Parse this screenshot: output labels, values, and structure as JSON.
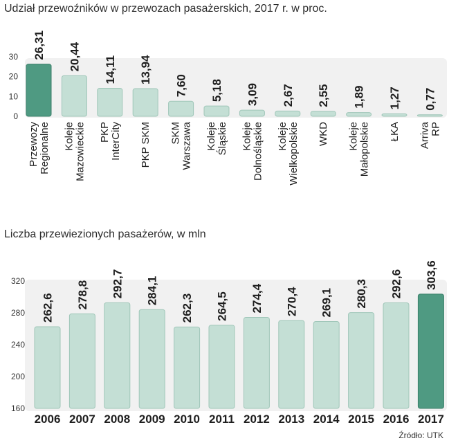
{
  "chart_data": [
    {
      "type": "bar",
      "title": "Udział przewoźników w przewozach pasażerskich, 2017 r. w proc.",
      "categories": [
        [
          "Przewozy",
          "Regionalne"
        ],
        [
          "Koleje",
          "Mazowieckie"
        ],
        [
          "PKP",
          "InterCity"
        ],
        [
          "PKP SKM"
        ],
        [
          "SKM",
          "Warszawa"
        ],
        [
          "Koleje",
          "Śląskie"
        ],
        [
          "Koleje",
          "Dolnośląskie"
        ],
        [
          "Koleje",
          "Wielkopolskie"
        ],
        [
          "WKD"
        ],
        [
          "Koleje",
          "Małopolskie"
        ],
        [
          "ŁKA"
        ],
        [
          "Arriva",
          "RP"
        ]
      ],
      "values": [
        26.31,
        20.44,
        14.11,
        13.94,
        7.6,
        5.18,
        3.09,
        2.67,
        2.55,
        1.89,
        1.27,
        0.77
      ],
      "value_labels": [
        "26,31",
        "20,44",
        "14,11",
        "13,94",
        "7,60",
        "5,18",
        "3,09",
        "2,67",
        "2,55",
        "1,89",
        "1,27",
        "0,77"
      ],
      "yticks": [
        "0",
        "10",
        "20",
        "30"
      ],
      "ylim": [
        0,
        30
      ],
      "highlight_index": 0,
      "grid": false
    },
    {
      "type": "bar",
      "title": "Liczba przewiezionych pasażerów, w mln",
      "categories": [
        "2006",
        "2007",
        "2008",
        "2009",
        "2010",
        "2011",
        "2012",
        "2013",
        "2014",
        "2015",
        "2016",
        "2017"
      ],
      "values": [
        262.6,
        278.8,
        292.7,
        284.1,
        262.3,
        264.5,
        274.4,
        270.4,
        269.1,
        280.3,
        292.6,
        303.6
      ],
      "value_labels": [
        "262,6",
        "278,8",
        "292,7",
        "284,1",
        "262,3",
        "264,5",
        "274,4",
        "270,4",
        "269,1",
        "280,3",
        "292,6",
        "303,6"
      ],
      "yticks": [
        "160",
        "200",
        "240",
        "280",
        "320"
      ],
      "ylim": [
        160,
        320
      ],
      "highlight_index": 11,
      "grid": false
    }
  ],
  "colors": {
    "bar": "#c4dfd5",
    "bar_stroke": "#9fc6b8",
    "highlight": "#4f9a82",
    "highlight_stroke": "#3a7f69",
    "band": "#f1f1f1"
  },
  "source": "Źródło: UTK"
}
